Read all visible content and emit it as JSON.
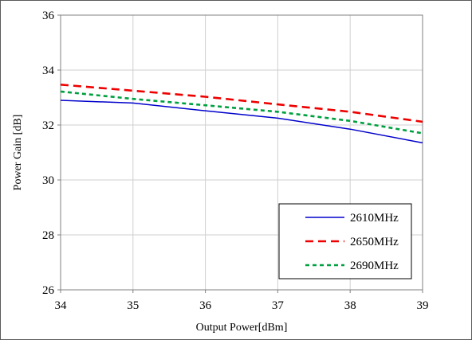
{
  "chart_data": {
    "type": "line",
    "title": "",
    "xlabel": "Output Power[dBm]",
    "ylabel": "Power Gain [dB]",
    "xlim": [
      34,
      39
    ],
    "ylim": [
      26,
      36
    ],
    "x_ticks": [
      34,
      35,
      36,
      37,
      38,
      39
    ],
    "y_ticks": [
      26,
      28,
      30,
      32,
      34,
      36
    ],
    "grid": true,
    "legend_position": "bottom-right",
    "series": [
      {
        "name": "2610MHz",
        "color": "#0000cc",
        "dash": "solid",
        "x": [
          34,
          35,
          36,
          37,
          38,
          39
        ],
        "y": [
          32.9,
          32.8,
          32.52,
          32.25,
          31.85,
          31.35
        ]
      },
      {
        "name": "2650MHz",
        "color": "#ee0000",
        "dash": "long-dash",
        "x": [
          34,
          35,
          36,
          37,
          38,
          39
        ],
        "y": [
          33.47,
          33.25,
          33.03,
          32.75,
          32.48,
          32.12
        ]
      },
      {
        "name": "2690MHz",
        "color": "#00a040",
        "dash": "short-dash",
        "x": [
          34,
          35,
          36,
          37,
          38,
          39
        ],
        "y": [
          33.22,
          32.95,
          32.72,
          32.48,
          32.15,
          31.7
        ]
      }
    ]
  }
}
